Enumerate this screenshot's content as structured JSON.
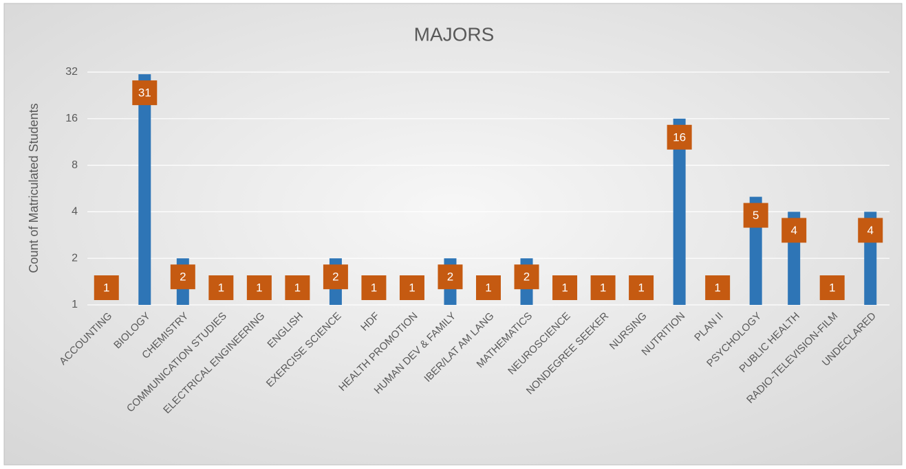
{
  "chart_data": {
    "type": "bar",
    "title": "MAJORS",
    "y_label": "Count of Matriculated Students",
    "categories": [
      "ACCOUNTING",
      "BIOLOGY",
      "CHEMISTRY",
      "COMMUNICATION STUDIES",
      "ELECTRICAL ENGINEERING",
      "ENGLISH",
      "EXERCISE SCIENCE",
      "HDF",
      "HEALTH PROMOTION",
      "HUMAN DEV & FAMILY",
      "IBER/LAT AM LANG",
      "MATHEMATICS",
      "NEUROSCIENCE",
      "NONDEGREE SEEKER",
      "NURSING",
      "NUTRITION",
      "PLAN II",
      "PSYCHOLOGY",
      "PUBLIC HEALTH",
      "RADIO-TELEVISION-FILM",
      "UNDECLARED"
    ],
    "values": [
      1,
      31,
      2,
      1,
      1,
      1,
      2,
      1,
      1,
      2,
      1,
      2,
      1,
      1,
      1,
      16,
      1,
      5,
      4,
      1,
      4
    ],
    "color": "#2e75b6",
    "label_color": "#c55a11",
    "ylim": [
      1,
      32
    ],
    "yticks": [
      1,
      2,
      4,
      8,
      16,
      32
    ],
    "yscale": "log",
    "log_base": 2,
    "grid": true
  }
}
